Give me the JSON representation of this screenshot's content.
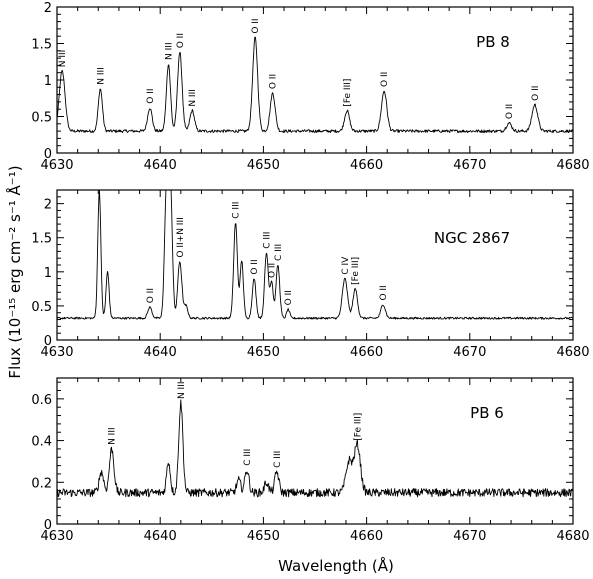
{
  "chart_data": {
    "type": "line",
    "xlabel": "Wavelength (Å)",
    "ylabel": "Flux (10⁻¹⁵ erg cm⁻² s⁻¹ Å⁻¹)",
    "xlim": [
      4630,
      4680
    ],
    "x_ticks": [
      4630,
      4640,
      4650,
      4660,
      4670,
      4680
    ],
    "x_tick_labels": [
      "4630",
      "4640",
      "4650",
      "4660",
      "4670",
      "4680"
    ],
    "panels": [
      {
        "object": "PB 8",
        "ylim": [
          0,
          2
        ],
        "y_ticks": [
          0,
          0.5,
          1,
          1.5,
          2
        ],
        "y_tick_labels": [
          "0",
          "0.5",
          "1",
          "1.5",
          "2"
        ],
        "x_tick_labels_shown": true,
        "continuum": 0.3,
        "noise": 0.02,
        "lines": [
          {
            "label": "N III",
            "x": 4630.5,
            "peak": 1.12,
            "width": 0.28
          },
          {
            "label": "N III",
            "x": 4634.2,
            "peak": 0.88,
            "width": 0.2
          },
          {
            "label": "O II",
            "x": 4639.0,
            "peak": 0.62,
            "width": 0.22
          },
          {
            "label": "N III",
            "x": 4640.8,
            "peak": 1.22,
            "width": 0.2
          },
          {
            "label": "O II",
            "x": 4641.9,
            "peak": 1.38,
            "width": 0.22
          },
          {
            "label": "N III",
            "x": 4643.1,
            "peak": 0.58,
            "width": 0.22
          },
          {
            "label": "O II",
            "x": 4649.2,
            "peak": 1.58,
            "width": 0.24
          },
          {
            "label": "O II",
            "x": 4650.9,
            "peak": 0.82,
            "width": 0.24
          },
          {
            "label": "[Fe III]",
            "x": 4658.1,
            "peak": 0.58,
            "width": 0.24
          },
          {
            "label": "O II",
            "x": 4661.7,
            "peak": 0.85,
            "width": 0.26
          },
          {
            "label": "O II",
            "x": 4673.8,
            "peak": 0.41,
            "width": 0.25
          },
          {
            "label": "O II",
            "x": 4676.3,
            "peak": 0.66,
            "width": 0.28
          }
        ]
      },
      {
        "object": "NGC 2867",
        "ylim": [
          0,
          2.2
        ],
        "y_ticks": [
          0,
          0.5,
          1,
          1.5,
          2
        ],
        "y_tick_labels": [
          "0",
          "0.5",
          "1",
          "1.5",
          "2"
        ],
        "x_tick_labels_shown": true,
        "continuum": 0.32,
        "noise": 0.015,
        "lines": [
          {
            "label": "",
            "x": 4634.1,
            "peak": 2.2,
            "width": 0.15
          },
          {
            "label": "",
            "x": 4634.9,
            "peak": 1.0,
            "width": 0.15
          },
          {
            "label": "O II",
            "x": 4639.0,
            "peak": 0.48,
            "width": 0.2
          },
          {
            "label": "",
            "x": 4640.6,
            "peak": 2.2,
            "width": 0.18
          },
          {
            "label": "",
            "x": 4641.0,
            "peak": 2.2,
            "width": 0.18
          },
          {
            "label": "O II+N III",
            "x": 4641.9,
            "peak": 1.15,
            "width": 0.2
          },
          {
            "label": "",
            "x": 4642.5,
            "peak": 0.5,
            "width": 0.18
          },
          {
            "label": "C III",
            "x": 4647.3,
            "peak": 1.72,
            "width": 0.18
          },
          {
            "label": "",
            "x": 4647.9,
            "peak": 1.16,
            "width": 0.16
          },
          {
            "label": "O II",
            "x": 4649.1,
            "peak": 0.9,
            "width": 0.18
          },
          {
            "label": "C III",
            "x": 4650.3,
            "peak": 1.28,
            "width": 0.18
          },
          {
            "label": "O II",
            "x": 4650.8,
            "peak": 0.85,
            "width": 0.15
          },
          {
            "label": "C III",
            "x": 4651.4,
            "peak": 1.1,
            "width": 0.18
          },
          {
            "label": "O II",
            "x": 4652.4,
            "peak": 0.45,
            "width": 0.15
          },
          {
            "label": "C IV",
            "x": 4657.9,
            "peak": 0.9,
            "width": 0.25
          },
          {
            "label": "[Fe III]",
            "x": 4658.9,
            "peak": 0.75,
            "width": 0.22
          },
          {
            "label": "O II",
            "x": 4661.6,
            "peak": 0.52,
            "width": 0.22
          }
        ]
      },
      {
        "object": "PB 6",
        "ylim": [
          0,
          0.7
        ],
        "y_ticks": [
          0,
          0.2,
          0.4,
          0.6
        ],
        "y_tick_labels": [
          "0",
          "0.2",
          "0.4",
          "0.6"
        ],
        "x_tick_labels_shown": true,
        "continuum": 0.15,
        "noise": 0.02,
        "lines": [
          {
            "label": "",
            "x": 4634.3,
            "peak": 0.25,
            "width": 0.22
          },
          {
            "label": "N III",
            "x": 4635.3,
            "peak": 0.36,
            "width": 0.22
          },
          {
            "label": "",
            "x": 4640.8,
            "peak": 0.3,
            "width": 0.18
          },
          {
            "label": "N III",
            "x": 4642.0,
            "peak": 0.58,
            "width": 0.2
          },
          {
            "label": "",
            "x": 4647.6,
            "peak": 0.21,
            "width": 0.2
          },
          {
            "label": "C III",
            "x": 4648.4,
            "peak": 0.26,
            "width": 0.2
          },
          {
            "label": "",
            "x": 4650.3,
            "peak": 0.2,
            "width": 0.2
          },
          {
            "label": "C III",
            "x": 4651.3,
            "peak": 0.25,
            "width": 0.2
          },
          {
            "label": "",
            "x": 4658.3,
            "peak": 0.3,
            "width": 0.3
          },
          {
            "label": "[Fe III]",
            "x": 4659.1,
            "peak": 0.38,
            "width": 0.3
          }
        ]
      }
    ]
  }
}
